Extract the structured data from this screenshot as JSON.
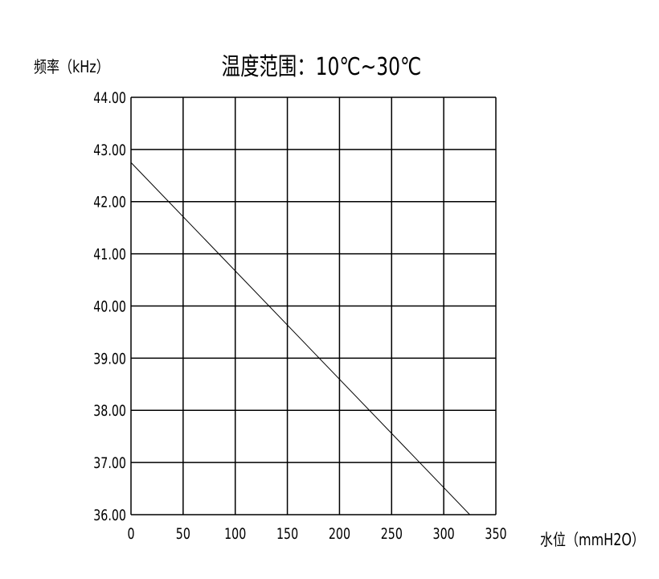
{
  "chart_data": {
    "type": "line",
    "title": "温度范围：10℃~30℃",
    "xlabel": "水位（mmH2O）",
    "ylabel": "频率（kHz）",
    "xlim": [
      0,
      350
    ],
    "ylim": [
      36,
      44
    ],
    "x_ticks": [
      "0",
      "50",
      "100",
      "150",
      "200",
      "250",
      "300",
      "350"
    ],
    "y_ticks": [
      "44.00",
      "43.00",
      "42.00",
      "41.00",
      "40.00",
      "39.00",
      "38.00",
      "37.00",
      "36.00"
    ],
    "grid": true,
    "series": [
      {
        "x": [
          0,
          325
        ],
        "y": [
          42.75,
          36.0
        ],
        "color": "#000000"
      }
    ]
  }
}
